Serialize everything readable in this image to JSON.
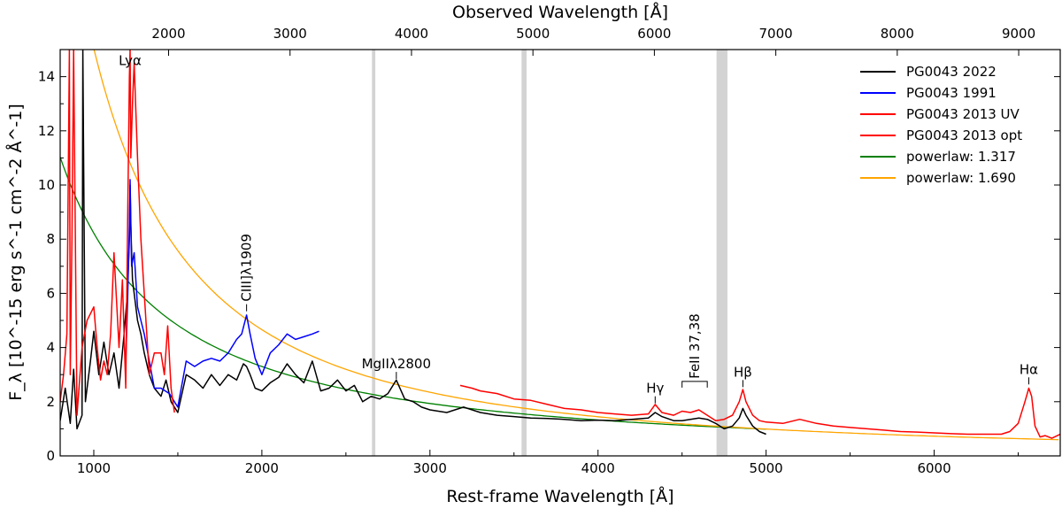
{
  "chart_data": {
    "type": "line",
    "xlabel": "Rest-frame Wavelength [Å]",
    "ylabel": "F_λ [10^-15 erg s^-1 cm^-2 Å^-1]",
    "x2label": "Observed Wavelength [Å]",
    "xlim": [
      800,
      6750
    ],
    "ylim": [
      0,
      15
    ],
    "redshift": 0.384,
    "x_ticks": [
      1000,
      2000,
      3000,
      4000,
      5000,
      6000
    ],
    "y_ticks": [
      0,
      2,
      4,
      6,
      8,
      10,
      12,
      14
    ],
    "x2_ticks": [
      2000,
      3000,
      4000,
      5000,
      6000,
      7000,
      8000,
      9000
    ],
    "grey_bands": [
      [
        2655,
        2675
      ],
      [
        3545,
        3575
      ],
      [
        4705,
        4770
      ]
    ],
    "series": [
      {
        "name": "PG0043 2022",
        "color": "#000000",
        "x": [
          800,
          830,
          860,
          880,
          900,
          930,
          935,
          950,
          980,
          1000,
          1030,
          1060,
          1090,
          1120,
          1150,
          1180,
          1200,
          1212,
          1216,
          1220,
          1230,
          1240,
          1260,
          1280,
          1300,
          1330,
          1360,
          1400,
          1430,
          1460,
          1500,
          1550,
          1600,
          1650,
          1700,
          1750,
          1800,
          1850,
          1890,
          1909,
          1930,
          1960,
          2000,
          2050,
          2100,
          2150,
          2200,
          2250,
          2300,
          2350,
          2400,
          2450,
          2500,
          2550,
          2600,
          2650,
          2700,
          2750,
          2800,
          2850,
          2900,
          2950,
          3000,
          3100,
          3200,
          3300,
          3400,
          3500,
          3600,
          3700,
          3800,
          3900,
          4000,
          4100,
          4200,
          4300,
          4340,
          4380,
          4450,
          4500,
          4550,
          4600,
          4650,
          4700,
          4750,
          4800,
          4840,
          4862,
          4880,
          4920,
          4960,
          5000
        ],
        "y": [
          1.3,
          2.5,
          1.2,
          3.2,
          1.0,
          1.5,
          15.0,
          2.0,
          3.5,
          4.6,
          3.0,
          4.2,
          3.0,
          3.8,
          2.5,
          4.5,
          6.0,
          8.0,
          10.0,
          8.5,
          6.5,
          6.0,
          5.0,
          4.5,
          3.8,
          3.0,
          2.5,
          2.2,
          2.8,
          2.0,
          1.6,
          3.0,
          2.8,
          2.5,
          3.0,
          2.6,
          3.0,
          2.8,
          3.4,
          3.3,
          3.0,
          2.5,
          2.4,
          2.7,
          2.9,
          3.4,
          3.0,
          2.7,
          3.5,
          2.4,
          2.5,
          2.8,
          2.4,
          2.6,
          2.0,
          2.2,
          2.1,
          2.3,
          2.8,
          2.1,
          2.0,
          1.8,
          1.7,
          1.6,
          1.8,
          1.6,
          1.5,
          1.45,
          1.4,
          1.38,
          1.35,
          1.3,
          1.32,
          1.3,
          1.35,
          1.4,
          1.6,
          1.45,
          1.3,
          1.3,
          1.35,
          1.4,
          1.35,
          1.2,
          1.0,
          1.1,
          1.4,
          1.75,
          1.5,
          1.1,
          0.9,
          0.8
        ]
      },
      {
        "name": "PG0043 1991",
        "color": "#0000ff",
        "x": [
          1190,
          1200,
          1212,
          1216,
          1225,
          1240,
          1260,
          1280,
          1300,
          1330,
          1360,
          1400,
          1450,
          1500,
          1550,
          1600,
          1650,
          1700,
          1750,
          1800,
          1850,
          1880,
          1909,
          1930,
          1960,
          2000,
          2050,
          2100,
          2150,
          2200,
          2250,
          2300,
          2340
        ],
        "y": [
          3.5,
          5.5,
          8.5,
          10.2,
          7.0,
          7.5,
          5.5,
          5.0,
          4.5,
          3.5,
          2.5,
          2.5,
          2.3,
          1.8,
          3.5,
          3.3,
          3.5,
          3.6,
          3.5,
          3.8,
          4.3,
          4.5,
          5.2,
          4.5,
          3.6,
          3.0,
          3.8,
          4.1,
          4.5,
          4.3,
          4.4,
          4.5,
          4.6
        ]
      },
      {
        "name": "PG0043 2013 UV",
        "color": "#ff0000",
        "x": [
          800,
          820,
          840,
          855,
          860,
          870,
          880,
          900,
          930,
          960,
          1000,
          1020,
          1040,
          1060,
          1080,
          1100,
          1120,
          1150,
          1170,
          1190,
          1200,
          1212,
          1216,
          1220,
          1230,
          1240,
          1260,
          1280,
          1300,
          1330,
          1360,
          1400,
          1420,
          1440,
          1460,
          1480
        ],
        "y": [
          2.0,
          3.0,
          4.5,
          15.0,
          3.0,
          8.0,
          15.0,
          1.5,
          4.0,
          5.0,
          5.5,
          4.0,
          2.8,
          3.5,
          3.0,
          4.5,
          7.5,
          4.0,
          6.5,
          2.5,
          8.0,
          14.0,
          15.0,
          11.0,
          13.0,
          14.5,
          11.0,
          8.0,
          6.0,
          3.0,
          3.8,
          3.8,
          3.0,
          4.8,
          2.5,
          1.6
        ]
      },
      {
        "name": "PG0043 2013 opt",
        "color": "#ff0000",
        "x": [
          3180,
          3250,
          3300,
          3400,
          3500,
          3600,
          3700,
          3800,
          3900,
          4000,
          4100,
          4200,
          4300,
          4340,
          4380,
          4450,
          4500,
          4550,
          4600,
          4650,
          4700,
          4750,
          4800,
          4840,
          4862,
          4880,
          4920,
          4960,
          5000,
          5100,
          5200,
          5300,
          5400,
          5500,
          5600,
          5700,
          5800,
          5900,
          6000,
          6100,
          6200,
          6300,
          6400,
          6450,
          6500,
          6540,
          6563,
          6580,
          6600,
          6630,
          6660,
          6700,
          6750
        ],
        "y": [
          2.6,
          2.5,
          2.4,
          2.3,
          2.1,
          2.05,
          1.9,
          1.75,
          1.7,
          1.6,
          1.55,
          1.5,
          1.55,
          1.9,
          1.6,
          1.5,
          1.65,
          1.6,
          1.7,
          1.5,
          1.3,
          1.35,
          1.5,
          2.0,
          2.45,
          2.0,
          1.5,
          1.3,
          1.25,
          1.2,
          1.35,
          1.2,
          1.1,
          1.05,
          1.0,
          0.95,
          0.9,
          0.88,
          0.85,
          0.82,
          0.8,
          0.8,
          0.8,
          0.9,
          1.2,
          2.0,
          2.5,
          2.2,
          1.1,
          0.7,
          0.75,
          0.65,
          0.8
        ]
      }
    ],
    "powerlaws": [
      {
        "name": "powerlaw: 1.317",
        "color": "#008000",
        "alpha": 1.317,
        "amp": 3.3,
        "xmin": 800,
        "xmax": 5000
      },
      {
        "name": "powerlaw: 1.690",
        "color": "#ffa500",
        "alpha": 1.69,
        "amp": 4.66,
        "xmin": 800,
        "xmax": 6750
      }
    ],
    "annotations": [
      {
        "label": "Lyα",
        "x": 1216,
        "y": 14.3,
        "rotate": false,
        "tick": false
      },
      {
        "label": "CIII]λ1909",
        "x": 1909,
        "y": 5.6,
        "rotate": true,
        "tick": true
      },
      {
        "label": "MgIIλ2800",
        "x": 2800,
        "y": 3.1,
        "rotate": false,
        "tick": true
      },
      {
        "label": "Hγ",
        "x": 4340,
        "y": 2.2,
        "rotate": false,
        "tick": true
      },
      {
        "label": "FeII 37,38",
        "x": 4575,
        "y": 2.75,
        "rotate": true,
        "tick": false,
        "bracket": [
          4500,
          4650
        ]
      },
      {
        "label": "Hβ",
        "x": 4862,
        "y": 2.8,
        "rotate": false,
        "tick": true
      },
      {
        "label": "Hα",
        "x": 6563,
        "y": 2.9,
        "rotate": false,
        "tick": true
      }
    ],
    "legend": {
      "placement": "top-right",
      "entries": [
        {
          "label": "PG0043 2022",
          "color": "#000000"
        },
        {
          "label": "PG0043 1991",
          "color": "#0000ff"
        },
        {
          "label": "PG0043 2013 UV",
          "color": "#ff0000"
        },
        {
          "label": "PG0043 2013 opt",
          "color": "#ff0000"
        },
        {
          "label": "powerlaw: 1.317",
          "color": "#008000"
        },
        {
          "label": "powerlaw: 1.690",
          "color": "#ffa500"
        }
      ]
    }
  }
}
